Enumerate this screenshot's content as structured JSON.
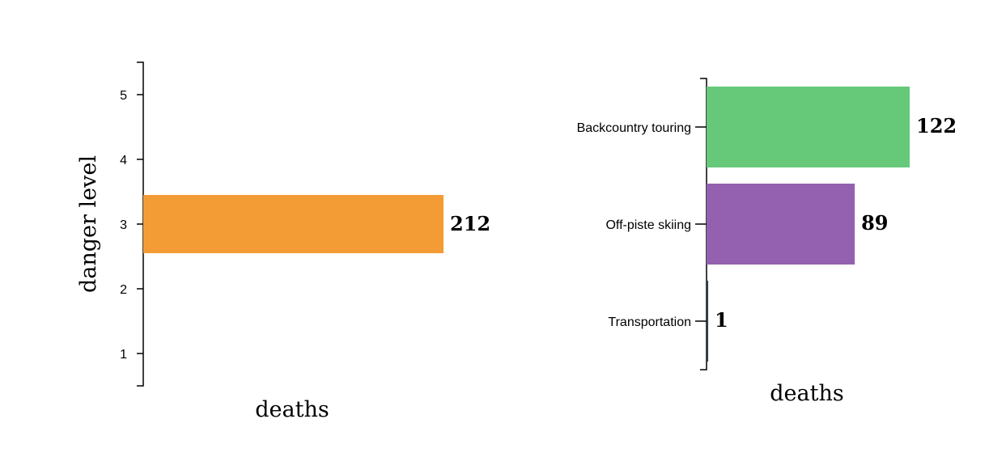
{
  "chart_data": [
    {
      "type": "bar",
      "orientation": "horizontal",
      "ylabel": "danger level",
      "xlabel": "deaths",
      "categories": [
        "1",
        "2",
        "3",
        "4",
        "5"
      ],
      "values": [
        0,
        0,
        212,
        0,
        0
      ],
      "labels": [
        "",
        "",
        "212",
        "",
        ""
      ],
      "colors": [
        "#f39c36",
        "#f39c36",
        "#f39c36",
        "#f39c36",
        "#f39c36"
      ],
      "xlim": [
        0,
        212
      ],
      "grid": false
    },
    {
      "type": "bar",
      "orientation": "horizontal",
      "xlabel": "deaths",
      "categories": [
        "Backcountry touring",
        "Off-piste skiing",
        "Transportation"
      ],
      "values": [
        122,
        89,
        1
      ],
      "labels": [
        "122",
        "89",
        "1"
      ],
      "colors": [
        "#66c97a",
        "#9361b0",
        "#2c3e50"
      ],
      "xlim": [
        0,
        122
      ],
      "grid": false
    }
  ]
}
